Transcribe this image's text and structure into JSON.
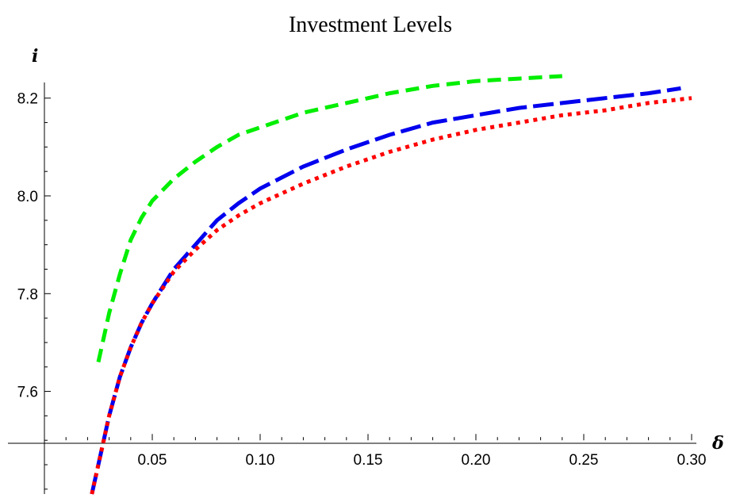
{
  "chart_data": {
    "type": "line",
    "title": "Investment Levels",
    "xlabel": "δ",
    "ylabel": "i",
    "xlim": [
      0.0,
      0.3
    ],
    "ylim": [
      7.39,
      8.245
    ],
    "axis_cross": {
      "x": 0.0,
      "y": 7.5
    },
    "x_ticks": [
      {
        "value": 0.05,
        "label": "0.05"
      },
      {
        "value": 0.1,
        "label": "0.10"
      },
      {
        "value": 0.15,
        "label": "0.15"
      },
      {
        "value": 0.2,
        "label": "0.20"
      },
      {
        "value": 0.25,
        "label": "0.25"
      },
      {
        "value": 0.3,
        "label": "0.30"
      }
    ],
    "y_ticks": [
      {
        "value": 7.6,
        "label": "7.6"
      },
      {
        "value": 7.8,
        "label": "7.8"
      },
      {
        "value": 8.0,
        "label": "8.0"
      },
      {
        "value": 8.2,
        "label": "8.2"
      }
    ],
    "grid": false,
    "legend": "none",
    "series": [
      {
        "color": "#00ee00",
        "dash": "dashed",
        "points": [
          [
            0.025,
            7.66
          ],
          [
            0.03,
            7.76
          ],
          [
            0.035,
            7.84
          ],
          [
            0.04,
            7.91
          ],
          [
            0.045,
            7.955
          ],
          [
            0.05,
            7.99
          ],
          [
            0.06,
            8.035
          ],
          [
            0.07,
            8.07
          ],
          [
            0.08,
            8.1
          ],
          [
            0.09,
            8.125
          ],
          [
            0.1,
            8.14
          ],
          [
            0.12,
            8.17
          ],
          [
            0.14,
            8.19
          ],
          [
            0.16,
            8.21
          ],
          [
            0.18,
            8.225
          ],
          [
            0.2,
            8.235
          ],
          [
            0.22,
            8.24
          ],
          [
            0.24,
            8.245
          ]
        ]
      },
      {
        "color": "#0000ee",
        "dash": "long-dashed",
        "points": [
          [
            0.022,
            7.39
          ],
          [
            0.025,
            7.45
          ],
          [
            0.03,
            7.55
          ],
          [
            0.035,
            7.63
          ],
          [
            0.04,
            7.69
          ],
          [
            0.045,
            7.74
          ],
          [
            0.05,
            7.78
          ],
          [
            0.06,
            7.85
          ],
          [
            0.07,
            7.9
          ],
          [
            0.08,
            7.95
          ],
          [
            0.09,
            7.985
          ],
          [
            0.1,
            8.015
          ],
          [
            0.12,
            8.06
          ],
          [
            0.14,
            8.095
          ],
          [
            0.16,
            8.125
          ],
          [
            0.18,
            8.15
          ],
          [
            0.2,
            8.165
          ],
          [
            0.22,
            8.18
          ],
          [
            0.24,
            8.19
          ],
          [
            0.26,
            8.2
          ],
          [
            0.28,
            8.21
          ],
          [
            0.295,
            8.22
          ]
        ]
      },
      {
        "color": "#ff0000",
        "dash": "dotted",
        "points": [
          [
            0.022,
            7.39
          ],
          [
            0.025,
            7.45
          ],
          [
            0.03,
            7.55
          ],
          [
            0.035,
            7.63
          ],
          [
            0.04,
            7.69
          ],
          [
            0.045,
            7.74
          ],
          [
            0.05,
            7.78
          ],
          [
            0.06,
            7.845
          ],
          [
            0.07,
            7.89
          ],
          [
            0.08,
            7.93
          ],
          [
            0.09,
            7.96
          ],
          [
            0.1,
            7.985
          ],
          [
            0.12,
            8.025
          ],
          [
            0.14,
            8.06
          ],
          [
            0.16,
            8.09
          ],
          [
            0.18,
            8.115
          ],
          [
            0.2,
            8.135
          ],
          [
            0.22,
            8.15
          ],
          [
            0.24,
            8.165
          ],
          [
            0.26,
            8.175
          ],
          [
            0.28,
            8.19
          ],
          [
            0.3,
            8.2
          ]
        ]
      }
    ]
  }
}
